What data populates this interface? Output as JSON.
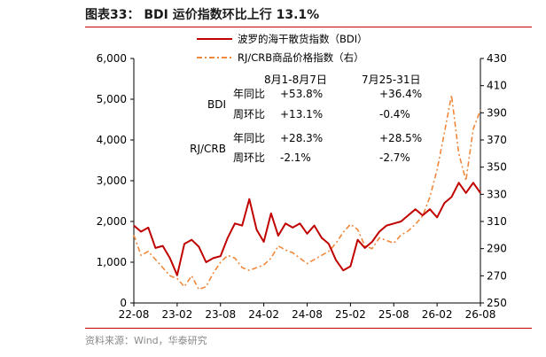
{
  "figure": {
    "title": "图表33： BDI 运价指数环比上行 13.1%",
    "source": "资料来源：Wind，华泰研究"
  },
  "colors": {
    "bdi": "#c00000",
    "crb": "#f0883c"
  },
  "chart_data": {
    "type": "line",
    "title": "",
    "xlabel": "",
    "x_ticks": [
      "22-08",
      "23-02",
      "23-08",
      "24-02",
      "24-08",
      "25-02",
      "25-08",
      "26-02",
      "26-08"
    ],
    "y_left": {
      "range": [
        0,
        6000
      ],
      "ticks": [
        "0",
        "1,000",
        "2,000",
        "3,000",
        "4,000",
        "5,000",
        "6,000"
      ]
    },
    "y_right": {
      "range": [
        250,
        430
      ],
      "ticks": [
        "250",
        "270",
        "290",
        "310",
        "330",
        "350",
        "370",
        "390",
        "410",
        "430"
      ]
    },
    "legend": {
      "placement": "top-center"
    },
    "series": [
      {
        "name": "波罗的海干散货指数（BDI）",
        "axis": "left",
        "style": "solid",
        "points": [
          [
            "22-08",
            1900
          ],
          [
            "22-09",
            1750
          ],
          [
            "22-10",
            1850
          ],
          [
            "22-11",
            1350
          ],
          [
            "22-12",
            1400
          ],
          [
            "23-01",
            1100
          ],
          [
            "23-02",
            680
          ],
          [
            "23-03",
            1450
          ],
          [
            "23-04",
            1550
          ],
          [
            "23-05",
            1380
          ],
          [
            "23-06",
            1000
          ],
          [
            "23-07",
            1100
          ],
          [
            "23-08",
            1150
          ],
          [
            "23-09",
            1600
          ],
          [
            "23-10",
            1950
          ],
          [
            "23-11",
            1900
          ],
          [
            "23-12",
            2550
          ],
          [
            "24-01",
            1800
          ],
          [
            "24-02",
            1500
          ],
          [
            "24-03",
            2200
          ],
          [
            "24-04",
            1650
          ],
          [
            "24-05",
            1950
          ],
          [
            "24-06",
            1850
          ],
          [
            "24-07",
            1950
          ],
          [
            "24-08",
            1700
          ],
          [
            "24-09",
            1900
          ],
          [
            "24-10",
            1600
          ],
          [
            "24-11",
            1450
          ],
          [
            "24-12",
            1050
          ],
          [
            "25-01",
            800
          ],
          [
            "25-02",
            900
          ],
          [
            "25-03",
            1550
          ],
          [
            "25-04",
            1350
          ],
          [
            "25-05",
            1500
          ],
          [
            "25-06",
            1750
          ],
          [
            "25-07",
            1900
          ],
          [
            "25-08",
            1950
          ],
          [
            "25-09",
            2000
          ],
          [
            "25-10",
            2150
          ],
          [
            "25-11",
            2300
          ],
          [
            "25-12",
            2150
          ],
          [
            "26-01",
            2300
          ],
          [
            "26-02",
            2100
          ],
          [
            "26-03",
            2450
          ],
          [
            "26-04",
            2600
          ],
          [
            "26-05",
            2950
          ],
          [
            "26-06",
            2700
          ],
          [
            "26-07",
            2950
          ],
          [
            "26-08",
            2700
          ]
        ]
      },
      {
        "name": "RJ/CRB商品价格指数（右）",
        "axis": "right",
        "style": "dash-dot",
        "points": [
          [
            "22-08",
            300
          ],
          [
            "22-09",
            285
          ],
          [
            "22-10",
            288
          ],
          [
            "22-11",
            282
          ],
          [
            "22-12",
            276
          ],
          [
            "23-01",
            270
          ],
          [
            "23-02",
            268
          ],
          [
            "23-03",
            262
          ],
          [
            "23-04",
            270
          ],
          [
            "23-05",
            260
          ],
          [
            "23-06",
            262
          ],
          [
            "23-07",
            272
          ],
          [
            "23-08",
            280
          ],
          [
            "23-09",
            285
          ],
          [
            "23-10",
            283
          ],
          [
            "23-11",
            276
          ],
          [
            "23-12",
            274
          ],
          [
            "24-01",
            276
          ],
          [
            "24-02",
            278
          ],
          [
            "24-03",
            283
          ],
          [
            "24-04",
            292
          ],
          [
            "24-05",
            289
          ],
          [
            "24-06",
            287
          ],
          [
            "24-07",
            283
          ],
          [
            "24-08",
            279
          ],
          [
            "24-09",
            282
          ],
          [
            "24-10",
            285
          ],
          [
            "24-11",
            288
          ],
          [
            "24-12",
            294
          ],
          [
            "25-01",
            302
          ],
          [
            "25-02",
            308
          ],
          [
            "25-03",
            304
          ],
          [
            "25-04",
            292
          ],
          [
            "25-05",
            290
          ],
          [
            "25-06",
            298
          ],
          [
            "25-07",
            296
          ],
          [
            "25-08",
            294
          ],
          [
            "25-09",
            300
          ],
          [
            "25-10",
            303
          ],
          [
            "25-11",
            308
          ],
          [
            "25-12",
            314
          ],
          [
            "26-01",
            328
          ],
          [
            "26-02",
            348
          ],
          [
            "26-03",
            375
          ],
          [
            "26-04",
            403
          ],
          [
            "26-05",
            360
          ],
          [
            "26-06",
            340
          ],
          [
            "26-07",
            378
          ],
          [
            "26-08",
            392
          ]
        ]
      }
    ],
    "annotations": {
      "col1_header": "8月1-8月7日",
      "col2_header": "7月25-31日",
      "rows": [
        {
          "group": "BDI",
          "metric": "年同比",
          "v1": "+53.8%",
          "v2": "+36.4%"
        },
        {
          "group": "",
          "metric": "周环比",
          "v1": "+13.1%",
          "v2": "-0.4%"
        },
        {
          "group": "RJ/CRB",
          "metric": "年同比",
          "v1": "+28.3%",
          "v2": "+28.5%"
        },
        {
          "group": "",
          "metric": "周环比",
          "v1": "-2.1%",
          "v2": "-2.7%"
        }
      ]
    }
  }
}
